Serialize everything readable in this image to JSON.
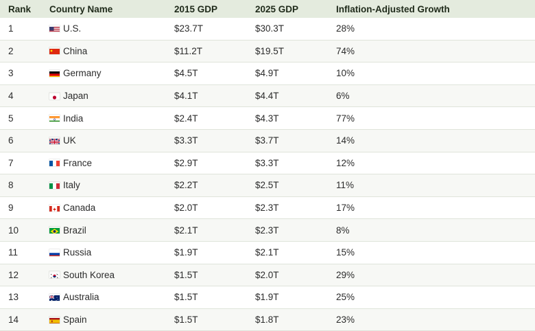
{
  "table": {
    "headers": {
      "rank": "Rank",
      "country": "Country Name",
      "gdp2015": "2015 GDP",
      "gdp2025": "2025 GDP",
      "growth": "Inflation-Adjusted Growth"
    },
    "rows": [
      {
        "rank": "1",
        "country": "U.S.",
        "flag": "flag-us-icon",
        "gdp2015": "$23.7T",
        "gdp2025": "$30.3T",
        "growth": "28%"
      },
      {
        "rank": "2",
        "country": "China",
        "flag": "flag-cn-icon",
        "gdp2015": "$11.2T",
        "gdp2025": "$19.5T",
        "growth": "74%"
      },
      {
        "rank": "3",
        "country": "Germany",
        "flag": "flag-de-icon",
        "gdp2015": "$4.5T",
        "gdp2025": "$4.9T",
        "growth": "10%"
      },
      {
        "rank": "4",
        "country": "Japan",
        "flag": "flag-jp-icon",
        "gdp2015": "$4.1T",
        "gdp2025": "$4.4T",
        "growth": "6%"
      },
      {
        "rank": "5",
        "country": "India",
        "flag": "flag-in-icon",
        "gdp2015": "$2.4T",
        "gdp2025": "$4.3T",
        "growth": "77%"
      },
      {
        "rank": "6",
        "country": "UK",
        "flag": "flag-uk-icon",
        "gdp2015": "$3.3T",
        "gdp2025": "$3.7T",
        "growth": "14%"
      },
      {
        "rank": "7",
        "country": "France",
        "flag": "flag-fr-icon",
        "gdp2015": "$2.9T",
        "gdp2025": "$3.3T",
        "growth": "12%"
      },
      {
        "rank": "8",
        "country": "Italy",
        "flag": "flag-it-icon",
        "gdp2015": "$2.2T",
        "gdp2025": "$2.5T",
        "growth": "11%"
      },
      {
        "rank": "9",
        "country": "Canada",
        "flag": "flag-ca-icon",
        "gdp2015": "$2.0T",
        "gdp2025": "$2.3T",
        "growth": "17%"
      },
      {
        "rank": "10",
        "country": "Brazil",
        "flag": "flag-br-icon",
        "gdp2015": "$2.1T",
        "gdp2025": "$2.3T",
        "growth": "8%"
      },
      {
        "rank": "11",
        "country": "Russia",
        "flag": "flag-ru-icon",
        "gdp2015": "$1.9T",
        "gdp2025": "$2.1T",
        "growth": "15%"
      },
      {
        "rank": "12",
        "country": "South Korea",
        "flag": "flag-kr-icon",
        "gdp2015": "$1.5T",
        "gdp2025": "$2.0T",
        "growth": "29%"
      },
      {
        "rank": "13",
        "country": "Australia",
        "flag": "flag-au-icon",
        "gdp2015": "$1.5T",
        "gdp2025": "$1.9T",
        "growth": "25%"
      },
      {
        "rank": "14",
        "country": "Spain",
        "flag": "flag-es-icon",
        "gdp2015": "$1.5T",
        "gdp2025": "$1.8T",
        "growth": "23%"
      }
    ]
  }
}
